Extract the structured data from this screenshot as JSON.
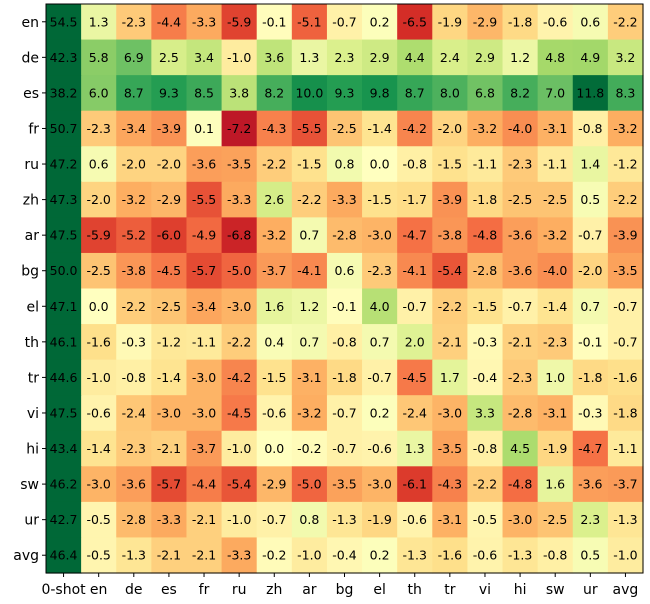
{
  "chart_data": {
    "type": "heatmap",
    "title": "",
    "xlabel": "",
    "ylabel": "",
    "x_labels": [
      "0-shot",
      "en",
      "de",
      "es",
      "fr",
      "ru",
      "zh",
      "ar",
      "bg",
      "el",
      "th",
      "tr",
      "vi",
      "hi",
      "sw",
      "ur",
      "avg"
    ],
    "y_labels": [
      "en",
      "de",
      "es",
      "fr",
      "ru",
      "zh",
      "ar",
      "bg",
      "el",
      "th",
      "tr",
      "vi",
      "hi",
      "sw",
      "ur",
      "avg"
    ],
    "values": [
      [
        54.5,
        1.3,
        -2.3,
        -4.4,
        -3.3,
        -5.9,
        -0.1,
        -5.1,
        -0.7,
        0.2,
        -6.5,
        -1.9,
        -2.9,
        -1.8,
        -0.6,
        0.6,
        -2.2
      ],
      [
        42.3,
        5.8,
        6.9,
        2.5,
        3.4,
        -1.0,
        3.6,
        1.3,
        2.3,
        2.9,
        4.4,
        2.4,
        2.9,
        1.2,
        4.8,
        4.9,
        3.2
      ],
      [
        38.2,
        6.0,
        8.7,
        9.3,
        8.5,
        3.8,
        8.2,
        10.0,
        9.3,
        9.8,
        8.7,
        8.0,
        6.8,
        8.2,
        7.0,
        11.8,
        8.3
      ],
      [
        50.7,
        -2.3,
        -3.4,
        -3.9,
        0.1,
        -7.2,
        -4.3,
        -5.5,
        -2.5,
        -1.4,
        -4.2,
        -2.0,
        -3.2,
        -4.0,
        -3.1,
        -0.8,
        -3.2
      ],
      [
        47.2,
        0.6,
        -2.0,
        -2.0,
        -3.6,
        -3.5,
        -2.2,
        -1.5,
        0.8,
        0.0,
        -0.8,
        -1.5,
        -1.1,
        -2.3,
        -1.1,
        1.4,
        -1.2
      ],
      [
        47.3,
        -2.0,
        -3.2,
        -2.9,
        -5.5,
        -3.3,
        2.6,
        -2.2,
        -3.3,
        -1.5,
        -1.7,
        -3.9,
        -1.8,
        -2.5,
        -2.5,
        0.5,
        -2.2
      ],
      [
        47.5,
        -5.9,
        -5.2,
        -6.0,
        -4.9,
        -6.8,
        -3.2,
        0.7,
        -2.8,
        -3.0,
        -4.7,
        -3.8,
        -4.8,
        -3.6,
        -3.2,
        -0.7,
        -3.9
      ],
      [
        50.0,
        -2.5,
        -3.8,
        -4.5,
        -5.7,
        -5.0,
        -3.7,
        -4.1,
        0.6,
        -2.3,
        -4.1,
        -5.4,
        -2.8,
        -3.6,
        -4.0,
        -2.0,
        -3.5
      ],
      [
        47.1,
        0.0,
        -2.2,
        -2.5,
        -3.4,
        -3.0,
        1.6,
        1.2,
        -0.1,
        4.0,
        -0.7,
        -2.2,
        -1.5,
        -0.7,
        -1.4,
        0.7,
        -0.7
      ],
      [
        46.1,
        -1.6,
        -0.3,
        -1.2,
        -1.1,
        -2.2,
        0.4,
        0.7,
        -0.8,
        0.7,
        2.0,
        -2.1,
        -0.3,
        -2.1,
        -2.3,
        -0.1,
        -0.7
      ],
      [
        44.6,
        -1.0,
        -0.8,
        -1.4,
        -3.0,
        -4.2,
        -1.5,
        -3.1,
        -1.8,
        -0.7,
        -4.5,
        1.7,
        -0.4,
        -2.3,
        1.0,
        -1.8,
        -1.6
      ],
      [
        47.5,
        -0.6,
        -2.4,
        -3.0,
        -3.0,
        -4.5,
        -0.6,
        -3.2,
        -0.7,
        0.2,
        -2.4,
        -3.0,
        3.3,
        -2.8,
        -3.1,
        -0.3,
        -1.8
      ],
      [
        43.4,
        -1.4,
        -2.3,
        -2.1,
        -3.7,
        -1.0,
        0.0,
        -0.2,
        -0.7,
        -0.6,
        1.3,
        -3.5,
        -0.8,
        4.5,
        -1.9,
        -4.7,
        -1.1
      ],
      [
        46.2,
        -3.0,
        -3.6,
        -5.7,
        -4.4,
        -5.4,
        -2.9,
        -5.0,
        -3.5,
        -3.0,
        -6.1,
        -4.3,
        -2.2,
        -4.8,
        1.6,
        -3.6,
        -3.7
      ],
      [
        42.7,
        -0.5,
        -2.8,
        -3.3,
        -2.1,
        -1.0,
        -0.7,
        0.8,
        -1.3,
        -1.9,
        -0.6,
        -3.1,
        -0.5,
        -3.0,
        -2.5,
        2.3,
        -1.3
      ],
      [
        46.4,
        -0.5,
        -1.3,
        -2.1,
        -2.1,
        -3.3,
        -0.2,
        -1.0,
        -0.4,
        0.2,
        -1.3,
        -1.6,
        -0.6,
        -1.3,
        -0.8,
        0.5,
        -1.0
      ]
    ],
    "colormap": "RdYlGn",
    "color_range": [
      -8,
      12
    ],
    "zero_shot_column_color": "#006837",
    "grid": false,
    "legend": "none"
  }
}
